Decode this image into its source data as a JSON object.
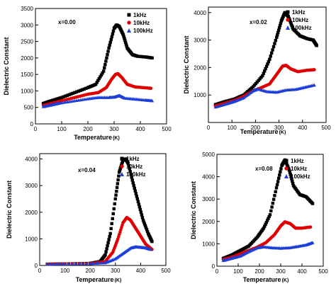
{
  "chart_data": [
    {
      "type": "scatter",
      "annotation": "x=0.00",
      "xlabel": "Temperature",
      "xunit": "(K)",
      "ylabel": "Dielectric Constant",
      "xlim": [
        0,
        500
      ],
      "ylim": [
        0,
        3500
      ],
      "xticks": [
        "0",
        "100",
        "200",
        "300",
        "400",
        "500"
      ],
      "yticks": [
        "0",
        "500",
        "1000",
        "1500",
        "2000",
        "2500",
        "3000",
        "3500"
      ],
      "legend_position": "top-right",
      "series": [
        {
          "name": "1kHz",
          "color": "#000000",
          "marker": "square",
          "x": [
            30,
            60,
            100,
            150,
            200,
            230,
            260,
            280,
            300,
            310,
            320,
            335,
            350,
            370,
            390,
            420,
            445
          ],
          "y": [
            620,
            700,
            800,
            950,
            1100,
            1200,
            1600,
            2300,
            2900,
            3000,
            2950,
            2700,
            2300,
            2100,
            2050,
            2030,
            2000
          ]
        },
        {
          "name": "10kHz",
          "color": "#e00000",
          "marker": "circle",
          "x": [
            30,
            60,
            100,
            150,
            200,
            240,
            270,
            290,
            305,
            315,
            330,
            350,
            380,
            410,
            440
          ],
          "y": [
            560,
            620,
            700,
            800,
            900,
            950,
            1100,
            1350,
            1500,
            1520,
            1400,
            1200,
            1120,
            1100,
            1080
          ]
        },
        {
          "name": "100kHz",
          "color": "#1c3fd6",
          "marker": "triangle",
          "x": [
            30,
            60,
            100,
            150,
            200,
            240,
            280,
            300,
            320,
            340,
            380,
            420,
            445
          ],
          "y": [
            520,
            570,
            640,
            700,
            760,
            800,
            800,
            810,
            860,
            780,
            750,
            720,
            700
          ]
        }
      ]
    },
    {
      "type": "scatter",
      "annotation": "x=0.02",
      "xlabel": "Temperature",
      "xunit": "(K)",
      "ylabel": "Dielectric Constant",
      "xlim": [
        0,
        500
      ],
      "ylim": [
        0,
        4200
      ],
      "xticks": [
        "0",
        "100",
        "200",
        "300",
        "400",
        "500"
      ],
      "yticks": [
        "1000",
        "2000",
        "3000",
        "4000"
      ],
      "legend_position": "top-right",
      "series": [
        {
          "name": "1kHz",
          "color": "#000000",
          "marker": "square",
          "x": [
            30,
            70,
            110,
            150,
            190,
            230,
            260,
            290,
            310,
            325,
            340,
            360,
            390,
            420,
            445,
            460
          ],
          "y": [
            650,
            760,
            850,
            1000,
            1300,
            1700,
            2300,
            3100,
            3700,
            4000,
            3850,
            3400,
            3150,
            3050,
            3000,
            2800
          ]
        },
        {
          "name": "10kHz",
          "color": "#e00000",
          "marker": "circle",
          "x": [
            30,
            70,
            110,
            150,
            190,
            220,
            260,
            290,
            315,
            330,
            350,
            380,
            420,
            450
          ],
          "y": [
            600,
            700,
            800,
            950,
            1150,
            1250,
            1400,
            1750,
            2050,
            2080,
            1950,
            1850,
            1900,
            1920
          ]
        },
        {
          "name": "100kHz",
          "color": "#1c3fd6",
          "marker": "triangle",
          "x": [
            30,
            70,
            110,
            150,
            190,
            210,
            250,
            290,
            330,
            370,
            410,
            450
          ],
          "y": [
            560,
            660,
            760,
            900,
            1150,
            1220,
            1120,
            1100,
            1180,
            1200,
            1280,
            1360
          ]
        }
      ]
    },
    {
      "type": "scatter",
      "annotation": "x=0.04",
      "xlabel": "Temperature",
      "xunit": "(K)",
      "ylabel": "Dielectric Constant",
      "xlim": [
        0,
        500
      ],
      "ylim": [
        0,
        4200
      ],
      "xticks": [
        "0",
        "100",
        "200",
        "300",
        "400",
        "500"
      ],
      "yticks": [
        "0",
        "1000",
        "2000",
        "3000",
        "4000"
      ],
      "legend_position": "top-right",
      "series": [
        {
          "name": "1kHz",
          "color": "#000000",
          "marker": "square",
          "x": [
            30,
            100,
            200,
            240,
            260,
            280,
            300,
            315,
            330,
            340,
            350,
            370,
            390,
            410,
            430,
            445
          ],
          "y": [
            50,
            60,
            80,
            150,
            400,
            1200,
            2500,
            3500,
            3950,
            4000,
            3850,
            3100,
            2400,
            1700,
            1200,
            900
          ]
        },
        {
          "name": "10kHz",
          "color": "#e00000",
          "marker": "circle",
          "x": [
            30,
            100,
            200,
            260,
            290,
            310,
            330,
            345,
            360,
            380,
            400,
            420,
            445
          ],
          "y": [
            50,
            60,
            70,
            150,
            500,
            1000,
            1600,
            1800,
            1700,
            1400,
            1100,
            800,
            600
          ]
        },
        {
          "name": "100kHz",
          "color": "#1c3fd6",
          "marker": "triangle",
          "x": [
            30,
            100,
            200,
            260,
            300,
            330,
            360,
            380,
            400,
            420,
            440
          ],
          "y": [
            50,
            60,
            70,
            100,
            250,
            450,
            650,
            700,
            680,
            660,
            600
          ]
        }
      ]
    },
    {
      "type": "scatter",
      "annotation": "x=0.08",
      "xlabel": "Temperature",
      "xunit": "(K)",
      "ylabel": "Dielectric Constant",
      "xlim": [
        0,
        500
      ],
      "ylim": [
        0,
        5000
      ],
      "xticks": [
        "0",
        "100",
        "200",
        "300",
        "400",
        "500"
      ],
      "yticks": [
        "0",
        "1000",
        "2000",
        "3000",
        "4000",
        "5000"
      ],
      "legend_position": "top-right",
      "series": [
        {
          "name": "1kHz",
          "color": "#000000",
          "marker": "square",
          "x": [
            30,
            70,
            110,
            150,
            190,
            220,
            250,
            280,
            305,
            320,
            340,
            360,
            390,
            420,
            450
          ],
          "y": [
            350,
            500,
            700,
            900,
            1300,
            1700,
            2300,
            3500,
            4500,
            4750,
            4300,
            3600,
            3200,
            3100,
            2800
          ]
        },
        {
          "name": "10kHz",
          "color": "#e00000",
          "marker": "circle",
          "x": [
            30,
            70,
            110,
            150,
            190,
            230,
            270,
            300,
            320,
            345,
            370,
            400,
            440
          ],
          "y": [
            300,
            400,
            550,
            700,
            850,
            1050,
            1400,
            1800,
            1980,
            1900,
            1700,
            1700,
            1750
          ]
        },
        {
          "name": "100kHz",
          "color": "#1c3fd6",
          "marker": "triangle",
          "x": [
            30,
            70,
            110,
            150,
            190,
            220,
            260,
            300,
            340,
            380,
            420,
            450
          ],
          "y": [
            250,
            350,
            450,
            650,
            820,
            860,
            820,
            800,
            820,
            880,
            950,
            1050
          ]
        }
      ]
    }
  ]
}
